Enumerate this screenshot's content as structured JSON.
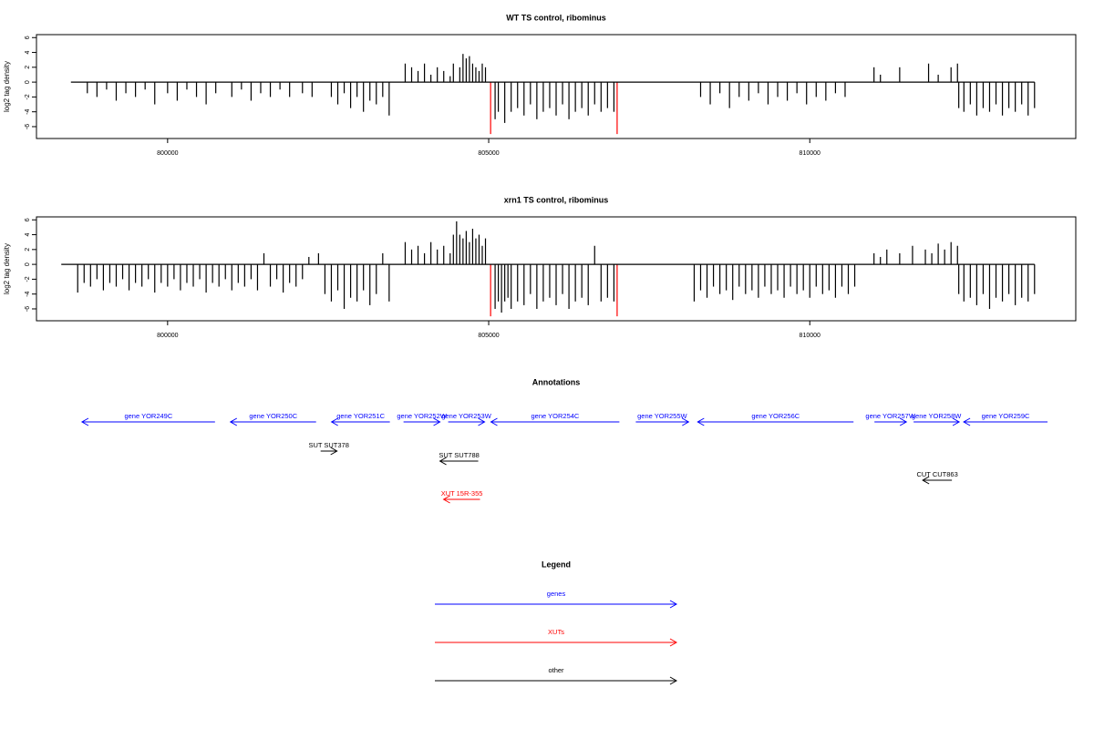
{
  "chart_data": [
    {
      "type": "bar",
      "title": "WT TS control, ribominus",
      "ylabel": "log2 tag density",
      "xlim": [
        797958,
        814142
      ],
      "xticks": [
        800000,
        805000,
        810000
      ],
      "ylim": [
        -7.6,
        6.4
      ],
      "yticks": [
        -6,
        -4,
        -2,
        0,
        2,
        4,
        6
      ],
      "series": [
        {
          "color": "#000000",
          "x": [
            798750,
            798900,
            799050,
            799200,
            799350,
            799500,
            799650,
            799800,
            800000,
            800150,
            800300,
            800450,
            800600,
            800750,
            801000,
            801150,
            801300,
            801450,
            801600,
            801750,
            801900,
            802100,
            802250,
            802550,
            802650,
            802750,
            802850,
            802950,
            803050,
            803150,
            803250,
            803350,
            803450,
            803700,
            803800,
            803900,
            804000,
            804100,
            804200,
            804300,
            804400,
            804450,
            804550,
            804600,
            804650,
            804700,
            804750,
            804800,
            804850,
            804900,
            804950,
            805100,
            805150,
            805250,
            805350,
            805450,
            805550,
            805650,
            805750,
            805850,
            805950,
            806050,
            806150,
            806250,
            806350,
            806450,
            806550,
            806650,
            806750,
            806850,
            806950,
            808300,
            808450,
            808600,
            808750,
            808900,
            809050,
            809200,
            809350,
            809500,
            809650,
            809800,
            809950,
            810100,
            810250,
            810400,
            810550,
            811000,
            811100,
            811400,
            811850,
            812000,
            812200,
            812300,
            812320,
            812400,
            812500,
            812600,
            812700,
            812800,
            812900,
            813000,
            813100,
            813200,
            813300,
            813400,
            813500
          ],
          "values": [
            -1.5,
            -2,
            -1,
            -2.5,
            -1.5,
            -2,
            -1,
            -3,
            -1.5,
            -2.5,
            -1,
            -2,
            -3,
            -1.5,
            -2,
            -1,
            -2.5,
            -1.5,
            -2,
            -1,
            -2,
            -1.5,
            -2,
            -2,
            -3,
            -1.5,
            -3.5,
            -2,
            -4,
            -2.5,
            -3,
            -2,
            -4.5,
            2.5,
            2,
            1.5,
            2.5,
            1,
            2,
            1.5,
            0.8,
            2.5,
            2,
            3.8,
            3.2,
            3.5,
            2.5,
            2,
            1.5,
            2.5,
            2,
            -5,
            -4,
            -5.5,
            -4,
            -3.5,
            -4.5,
            -3,
            -5,
            -4,
            -3.5,
            -4.5,
            -3,
            -5,
            -4,
            -3.5,
            -4.5,
            -3,
            -4,
            -3.5,
            -4,
            -2,
            -3,
            -1.5,
            -3.5,
            -2,
            -2.5,
            -1.5,
            -3,
            -2,
            -2.5,
            -1.5,
            -3,
            -2,
            -2.5,
            -1.5,
            -2,
            2,
            1,
            2,
            2.5,
            1,
            2,
            2.5,
            -3.5,
            -4,
            -3,
            -4.5,
            -3.5,
            -4,
            -3,
            -4.5,
            -3.5,
            -4,
            -3,
            -4.5,
            -3.5
          ]
        },
        {
          "color": "#ff0000",
          "x": [
            805030,
            807000
          ],
          "values": [
            -7,
            -7
          ]
        }
      ]
    },
    {
      "type": "bar",
      "title": "xrn1 TS control, ribominus",
      "ylabel": "log2 tag density",
      "xlim": [
        797958,
        814142
      ],
      "xticks": [
        800000,
        805000,
        810000
      ],
      "ylim": [
        -7.6,
        6.4
      ],
      "yticks": [
        -6,
        -4,
        -2,
        0,
        2,
        4,
        6
      ],
      "series": [
        {
          "color": "#000000",
          "x": [
            798600,
            798700,
            798800,
            798900,
            799000,
            799100,
            799200,
            799300,
            799400,
            799500,
            799600,
            799700,
            799800,
            799900,
            800000,
            800100,
            800200,
            800300,
            800400,
            800500,
            800600,
            800700,
            800800,
            800900,
            801000,
            801100,
            801200,
            801300,
            801400,
            801500,
            801600,
            801700,
            801800,
            801900,
            802000,
            802100,
            802200,
            802350,
            802450,
            802550,
            802650,
            802750,
            802850,
            802950,
            803050,
            803150,
            803250,
            803350,
            803450,
            803700,
            803800,
            803900,
            804000,
            804100,
            804200,
            804300,
            804400,
            804450,
            804500,
            804550,
            804600,
            804650,
            804700,
            804750,
            804800,
            804850,
            804900,
            804950,
            805100,
            805150,
            805200,
            805250,
            805300,
            805350,
            805450,
            805550,
            805650,
            805750,
            805850,
            805950,
            806050,
            806150,
            806250,
            806350,
            806450,
            806550,
            806650,
            806750,
            806850,
            806950,
            808200,
            808300,
            808400,
            808500,
            808600,
            808700,
            808800,
            808900,
            809000,
            809100,
            809200,
            809300,
            809400,
            809500,
            809600,
            809700,
            809800,
            809900,
            810000,
            810100,
            810200,
            810300,
            810400,
            810500,
            810600,
            810700,
            811000,
            811100,
            811200,
            811400,
            811600,
            811800,
            811900,
            812000,
            812100,
            812200,
            812300,
            812320,
            812400,
            812500,
            812600,
            812700,
            812800,
            812900,
            813000,
            813100,
            813200,
            813300,
            813400,
            813500
          ],
          "values": [
            -3.8,
            -2.5,
            -3,
            -2,
            -3.5,
            -2.5,
            -3,
            -2,
            -3.5,
            -2.5,
            -3,
            -2,
            -3.8,
            -2.5,
            -3,
            -2,
            -3.5,
            -2.5,
            -3,
            -2,
            -3.8,
            -2.5,
            -3,
            -2,
            -3.5,
            -2.5,
            -3,
            -2,
            -3.5,
            1.5,
            -3,
            -2,
            -3.8,
            -2.5,
            -3,
            -2,
            1,
            1.5,
            -4,
            -5,
            -3.5,
            -6,
            -4.5,
            -5,
            -3.5,
            -5.5,
            -4,
            1.5,
            -5,
            3,
            2,
            2.5,
            1.5,
            3,
            2,
            2.5,
            1.5,
            4,
            5.8,
            4,
            3.5,
            4.5,
            3,
            4.8,
            3.5,
            4,
            2.5,
            3.5,
            -6,
            -5,
            -6.5,
            -5,
            -4.5,
            -6,
            -5,
            -5.5,
            -4,
            -6,
            -5,
            -4.5,
            -5.5,
            -4,
            -6,
            -5,
            -4.5,
            -5.5,
            2.5,
            -5,
            -4.5,
            -5,
            -5,
            -3.5,
            -4.5,
            -3,
            -4,
            -3.5,
            -4.8,
            -3,
            -4,
            -3.5,
            -4.5,
            -3,
            -4,
            -3.5,
            -4.5,
            -3,
            -4,
            -3.5,
            -4.5,
            -3,
            -4,
            -3.5,
            -4.5,
            -3,
            -4,
            -3,
            1.5,
            1,
            2,
            1.5,
            2.5,
            2,
            1.5,
            2.8,
            2,
            3,
            2.5,
            -4,
            -5,
            -4.5,
            -5.5,
            -4,
            -6,
            -4.5,
            -5,
            -4,
            -5.5,
            -4.5,
            -5,
            -4
          ]
        },
        {
          "color": "#ff0000",
          "x": [
            805030,
            807000
          ],
          "values": [
            -7,
            -7
          ]
        }
      ]
    },
    {
      "type": "annotation",
      "title": "Annotations",
      "xlim": [
        797958,
        814142
      ],
      "features": [
        {
          "label": "gene YOR249C",
          "start": 798667,
          "end": 800738,
          "strand": "-",
          "color": "#0000ff"
        },
        {
          "label": "gene YOR250C",
          "start": 800979,
          "end": 802312,
          "strand": "-",
          "color": "#0000ff"
        },
        {
          "label": "gene YOR251C",
          "start": 802553,
          "end": 803461,
          "strand": "-",
          "color": "#0000ff"
        },
        {
          "label": "gene YOR252W",
          "start": 803674,
          "end": 804241,
          "strand": "+",
          "color": "#0000ff"
        },
        {
          "label": "gene YOR253W",
          "start": 804369,
          "end": 804936,
          "strand": "+",
          "color": "#0000ff"
        },
        {
          "label": "gene YOR254C",
          "start": 805035,
          "end": 807035,
          "strand": "-",
          "color": "#0000ff"
        },
        {
          "label": "gene YOR255W",
          "start": 807291,
          "end": 808113,
          "strand": "+",
          "color": "#0000ff"
        },
        {
          "label": "gene YOR256C",
          "start": 808255,
          "end": 810681,
          "strand": "-",
          "color": "#0000ff"
        },
        {
          "label": "gene YOR257W",
          "start": 811007,
          "end": 811504,
          "strand": "+",
          "color": "#0000ff"
        },
        {
          "label": "gene YOR258W",
          "start": 811617,
          "end": 812326,
          "strand": "+",
          "color": "#0000ff"
        },
        {
          "label": "gene YOR259C",
          "start": 812397,
          "end": 813702,
          "strand": "-",
          "color": "#0000ff"
        },
        {
          "label": "SUT SUT378",
          "start": 802383,
          "end": 802638,
          "strand": "+",
          "color": "#000000"
        },
        {
          "label": "SUT SUT788",
          "start": 804241,
          "end": 804837,
          "strand": "-",
          "color": "#000000"
        },
        {
          "label": "CUT CUT863",
          "start": 811759,
          "end": 812213,
          "strand": "-",
          "color": "#000000"
        },
        {
          "label": "XUT 15R-355",
          "start": 804298,
          "end": 804865,
          "strand": "-",
          "color": "#ff0000"
        }
      ]
    },
    {
      "type": "legend",
      "title": "Legend",
      "entries": [
        {
          "label": "genes",
          "color": "#0000ff"
        },
        {
          "label": "XUTs",
          "color": "#ff0000"
        },
        {
          "label": "other",
          "color": "#000000"
        }
      ]
    }
  ]
}
